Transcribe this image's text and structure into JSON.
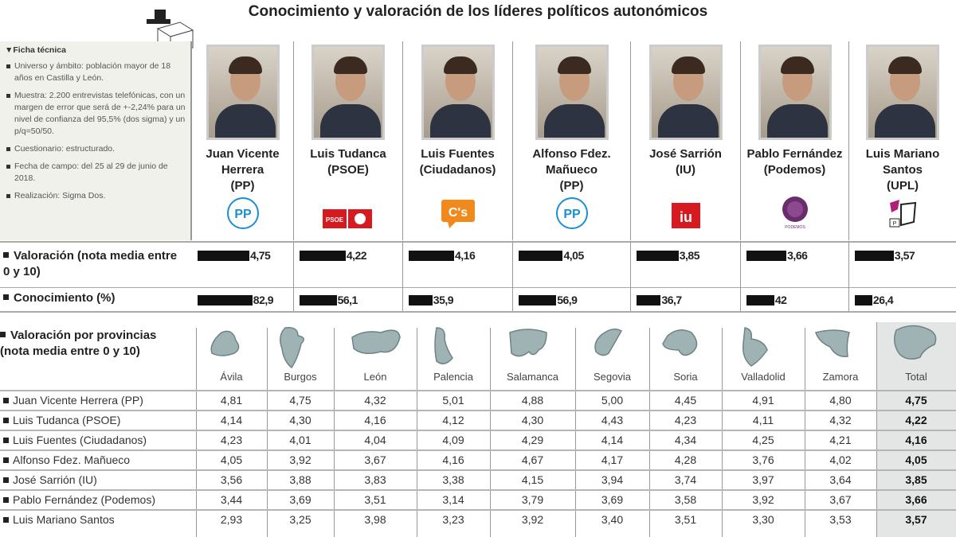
{
  "title": "Conocimiento y valoración de los líderes políticos autonómicos",
  "ficha": {
    "heading": "▼Ficha técnica",
    "items": [
      "Universo y ámbito: población mayor de 18 años en Castilla y León.",
      "Muestra: 2.200 entrevistas telefónicas, con un margen de error que será de +-2,24% para un nivel de confianza del 95,5% (dos sigma) y un p/q=50/50.",
      "Cuestionario: estructurado.",
      "Fecha de campo: del 25 al 29 de junio de 2018.",
      "Realización: Sigma Dos."
    ]
  },
  "leaders": [
    {
      "name": "Juan Vicente Herrera",
      "party": "(PP)",
      "logo": "pp-logo",
      "logo_text": "PP"
    },
    {
      "name": "Luis Tudanca",
      "party": "(PSOE)",
      "logo": "psoe-logo",
      "logo_text": "PSOE"
    },
    {
      "name": "Luis Fuentes",
      "party": "(Ciudadanos)",
      "logo": "cs-logo",
      "logo_text": "C's"
    },
    {
      "name": "Alfonso Fdez. Mañueco",
      "party": "(PP)",
      "logo": "pp-logo",
      "logo_text": "PP"
    },
    {
      "name": "José Sarrión",
      "party": "(IU)",
      "logo": "iu-logo",
      "logo_text": "IU"
    },
    {
      "name": "Pablo Fernández",
      "party": "(Podemos)",
      "logo": "podemos-logo",
      "logo_text": "PODEMOS"
    },
    {
      "name": "Luis Mariano Santos",
      "party": "(UPL)",
      "logo": "upl-logo",
      "logo_text": "UPL"
    }
  ],
  "labels": {
    "valoracion": "Valoración (nota media entre 0 y 10)",
    "conocimiento": "Conocimiento (%)",
    "provincias": "Valoración por provincias (nota media entre 0 y 10)"
  },
  "colors": {
    "bar": "#111111",
    "map": "#9fb3b5",
    "total_bg": "#e4e6e6",
    "pp": "#1a8fd6",
    "psoe": "#d71920",
    "cs": "#f08a1c",
    "iu": "#d71920",
    "podemos": "#6b2c6e",
    "upl": "#b0207a"
  },
  "chart_data": [
    {
      "type": "bar",
      "title": "Valoración (nota media entre 0 y 10)",
      "categories": [
        "Juan Vicente Herrera (PP)",
        "Luis Tudanca (PSOE)",
        "Luis Fuentes (Ciudadanos)",
        "Alfonso Fdez. Mañueco (PP)",
        "José Sarrión (IU)",
        "Pablo Fernández (Podemos)",
        "Luis Mariano Santos (UPL)"
      ],
      "values": [
        4.75,
        4.22,
        4.16,
        4.05,
        3.85,
        3.66,
        3.57
      ],
      "labels": [
        "4,75",
        "4,22",
        "4,16",
        "4,05",
        "3,85",
        "3,66",
        "3,57"
      ]
    },
    {
      "type": "bar",
      "title": "Conocimiento (%)",
      "categories": [
        "Juan Vicente Herrera (PP)",
        "Luis Tudanca (PSOE)",
        "Luis Fuentes (Ciudadanos)",
        "Alfonso Fdez. Mañueco (PP)",
        "José Sarrión (IU)",
        "Pablo Fernández (Podemos)",
        "Luis Mariano Santos (UPL)"
      ],
      "values": [
        82.9,
        56.1,
        35.9,
        56.9,
        36.7,
        42,
        26.4
      ],
      "labels": [
        "82,9",
        "56,1",
        "35,9",
        "56,9",
        "36,7",
        "42",
        "26,4"
      ]
    },
    {
      "type": "table",
      "title": "Valoración por provincias (nota media entre 0 y 10)",
      "columns": [
        "Ávila",
        "Burgos",
        "León",
        "Palencia",
        "Salamanca",
        "Segovia",
        "Soria",
        "Valladolid",
        "Zamora",
        "Total"
      ],
      "rows": [
        {
          "label": "Juan Vicente Herrera (PP)",
          "values": [
            "4,81",
            "4,75",
            "4,32",
            "5,01",
            "4,88",
            "5,00",
            "4,45",
            "4,91",
            "4,80",
            "4,75"
          ]
        },
        {
          "label": "Luis Tudanca (PSOE)",
          "values": [
            "4,14",
            "4,30",
            "4,16",
            "4,12",
            "4,30",
            "4,43",
            "4,23",
            "4,11",
            "4,32",
            "4,22"
          ]
        },
        {
          "label": "Luis Fuentes (Ciudadanos)",
          "values": [
            "4,23",
            "4,01",
            "4,04",
            "4,09",
            "4,29",
            "4,14",
            "4,34",
            "4,25",
            "4,21",
            "4,16"
          ]
        },
        {
          "label": "Alfonso Fdez. Mañueco",
          "values": [
            "4,05",
            "3,92",
            "3,67",
            "4,16",
            "4,67",
            "4,17",
            "4,28",
            "3,76",
            "4,02",
            "4,05"
          ]
        },
        {
          "label": "José Sarrión (IU)",
          "values": [
            "3,56",
            "3,88",
            "3,83",
            "3,38",
            "4,15",
            "3,94",
            "3,74",
            "3,97",
            "3,64",
            "3,85"
          ]
        },
        {
          "label": "Pablo Fernández (Podemos)",
          "values": [
            "3,44",
            "3,69",
            "3,51",
            "3,14",
            "3,79",
            "3,69",
            "3,58",
            "3,92",
            "3,67",
            "3,66"
          ]
        },
        {
          "label": "Luis Mariano Santos",
          "values": [
            "2,93",
            "3,25",
            "3,98",
            "3,23",
            "3,92",
            "3,40",
            "3,51",
            "3,30",
            "3,53",
            "3,57"
          ]
        }
      ]
    }
  ]
}
